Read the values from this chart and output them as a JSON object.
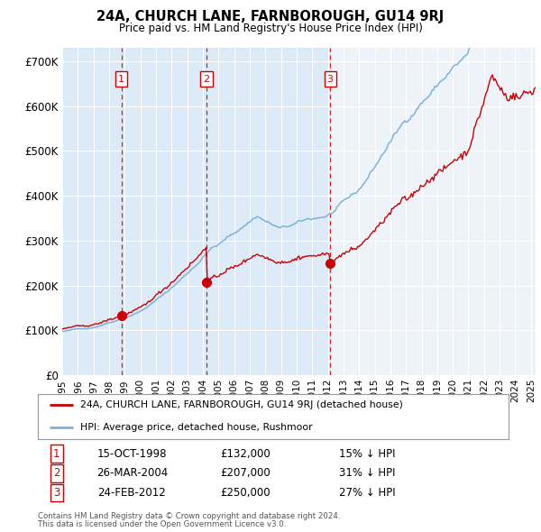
{
  "title": "24A, CHURCH LANE, FARNBOROUGH, GU14 9RJ",
  "subtitle": "Price paid vs. HM Land Registry's House Price Index (HPI)",
  "legend_line1": "24A, CHURCH LANE, FARNBOROUGH, GU14 9RJ (detached house)",
  "legend_line2": "HPI: Average price, detached house, Rushmoor",
  "footer1": "Contains HM Land Registry data © Crown copyright and database right 2024.",
  "footer2": "This data is licensed under the Open Government Licence v3.0.",
  "sales": [
    {
      "num": 1,
      "date": "15-OCT-1998",
      "price": 132000,
      "pct": "15%",
      "dir": "↓"
    },
    {
      "num": 2,
      "date": "26-MAR-2004",
      "price": 207000,
      "pct": "31%",
      "dir": "↓"
    },
    {
      "num": 3,
      "date": "24-FEB-2012",
      "price": 250000,
      "pct": "27%",
      "dir": "↓"
    }
  ],
  "sale_dates_decimal": [
    1998.79,
    2004.23,
    2012.15
  ],
  "sale_prices": [
    132000,
    207000,
    250000
  ],
  "hpi_color": "#7ab4d8",
  "price_color": "#cc0000",
  "dot_color": "#cc0000",
  "vline_color": "#cc0000",
  "plot_bg": "#eef3fa",
  "ylim": [
    0,
    730000
  ],
  "xlim_start": 1995.0,
  "xlim_end": 2025.3,
  "yticks": [
    0,
    100000,
    200000,
    300000,
    400000,
    500000,
    600000,
    700000
  ],
  "ytick_labels": [
    "£0",
    "£100K",
    "£200K",
    "£300K",
    "£400K",
    "£500K",
    "£600K",
    "£700K"
  ]
}
